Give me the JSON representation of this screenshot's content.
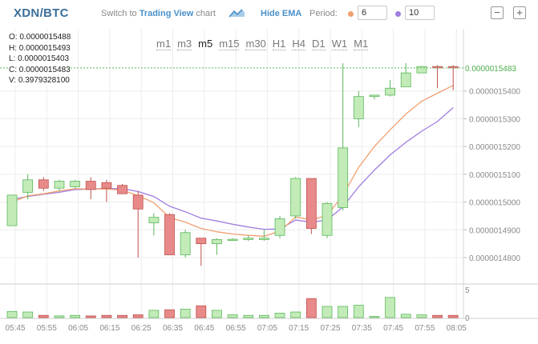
{
  "header": {
    "pair": "XDN/BTC",
    "switch_prefix": "Switch to",
    "switch_link": "Trading View",
    "switch_suffix": "chart",
    "hide_ema": "Hide EMA",
    "period_label": "Period:",
    "period1": "6",
    "period2": "10",
    "zoom_out": "−",
    "zoom_in": "+"
  },
  "ohlc": {
    "o": "O: 0.0000015488",
    "h": "H: 0.0000015493",
    "l": "L: 0.0000015403",
    "c": "C: 0.0000015483",
    "v": "V: 0.3979328100"
  },
  "timeframes": [
    "m1",
    "m3",
    "m5",
    "m15",
    "m30",
    "H1",
    "H4",
    "D1",
    "W1",
    "M1"
  ],
  "active_timeframe": "m5",
  "colors": {
    "up_fill": "#c2ebb8",
    "up_stroke": "#5cb85c",
    "down_fill": "#e88a8a",
    "down_stroke": "#c0504d",
    "ema_short": "#f0a070",
    "ema_long": "#a07de0",
    "last_price_line": "#5cb85c",
    "last_price_label": "#4cae4c",
    "grid": "#ececec"
  },
  "chart_data": {
    "type": "candlestick",
    "y_tick_labels": [
      "0.0000015400",
      "0.0000015300",
      "0.0000015200",
      "0.0000015100",
      "0.0000015000",
      "0.0000014900",
      "0.0000014800"
    ],
    "y_ticks": [
      1.54e-06,
      1.53e-06,
      1.52e-06,
      1.51e-06,
      1.5e-06,
      1.49e-06,
      1.48e-06
    ],
    "last_price_label": "0.0000015483",
    "last_price": 1.5483e-06,
    "x_tick_labels": [
      "05:45",
      "05:55",
      "06:05",
      "06:15",
      "06:25",
      "06:35",
      "06:45",
      "06:55",
      "07:05",
      "07:15",
      "07:25",
      "07:35",
      "07:45",
      "07:55",
      "08:05"
    ],
    "volume_ticks": [
      5,
      0
    ],
    "candles": [
      {
        "t": "05:45",
        "o": 1.4915e-06,
        "h": 1.5025e-06,
        "l": 1.4915e-06,
        "c": 1.5025e-06,
        "v": 1.1
      },
      {
        "t": "05:50",
        "o": 1.5035e-06,
        "h": 1.51e-06,
        "l": 1.501e-06,
        "c": 1.508e-06,
        "v": 1.0
      },
      {
        "t": "05:55",
        "o": 1.508e-06,
        "h": 1.509e-06,
        "l": 1.504e-06,
        "c": 1.505e-06,
        "v": 0.4
      },
      {
        "t": "06:00",
        "o": 1.505e-06,
        "h": 1.508e-06,
        "l": 1.504e-06,
        "c": 1.5075e-06,
        "v": 0.3
      },
      {
        "t": "06:05",
        "o": 1.5055e-06,
        "h": 1.508e-06,
        "l": 1.505e-06,
        "c": 1.5075e-06,
        "v": 0.4
      },
      {
        "t": "06:10",
        "o": 1.5075e-06,
        "h": 1.509e-06,
        "l": 1.501e-06,
        "c": 1.5045e-06,
        "v": 0.3
      },
      {
        "t": "06:15",
        "o": 1.507e-06,
        "h": 1.508e-06,
        "l": 1.5e-06,
        "c": 1.505e-06,
        "v": 0.4
      },
      {
        "t": "06:20",
        "o": 1.506e-06,
        "h": 1.5065e-06,
        "l": 1.503e-06,
        "c": 1.503e-06,
        "v": 0.4
      },
      {
        "t": "06:25",
        "o": 1.5025e-06,
        "h": 1.504e-06,
        "l": 1.48e-06,
        "c": 1.4975e-06,
        "v": 0.5
      },
      {
        "t": "06:30",
        "o": 1.4925e-06,
        "h": 1.496e-06,
        "l": 1.488e-06,
        "c": 1.4945e-06,
        "v": 1.3
      },
      {
        "t": "06:35",
        "o": 1.4955e-06,
        "h": 1.496e-06,
        "l": 1.481e-06,
        "c": 1.481e-06,
        "v": 1.4
      },
      {
        "t": "06:40",
        "o": 1.481e-06,
        "h": 1.49e-06,
        "l": 1.48e-06,
        "c": 1.489e-06,
        "v": 1.5
      },
      {
        "t": "06:45",
        "o": 1.487e-06,
        "h": 1.487e-06,
        "l": 1.477e-06,
        "c": 1.485e-06,
        "v": 2.1
      },
      {
        "t": "06:50",
        "o": 1.485e-06,
        "h": 1.487e-06,
        "l": 1.481e-06,
        "c": 1.4865e-06,
        "v": 1.3
      },
      {
        "t": "06:55",
        "o": 1.4862e-06,
        "h": 1.487e-06,
        "l": 1.486e-06,
        "c": 1.4866e-06,
        "v": 0.5
      },
      {
        "t": "07:00",
        "o": 1.4865e-06,
        "h": 1.488e-06,
        "l": 1.486e-06,
        "c": 1.487e-06,
        "v": 0.4
      },
      {
        "t": "07:05",
        "o": 1.4865e-06,
        "h": 1.49e-06,
        "l": 1.486e-06,
        "c": 1.487e-06,
        "v": 0.4
      },
      {
        "t": "07:10",
        "o": 1.488e-06,
        "h": 1.495e-06,
        "l": 1.487e-06,
        "c": 1.494e-06,
        "v": 0.8
      },
      {
        "t": "07:15",
        "o": 1.495e-06,
        "h": 1.509e-06,
        "l": 1.494e-06,
        "c": 1.5085e-06,
        "v": 1.0
      },
      {
        "t": "07:20",
        "o": 1.5085e-06,
        "h": 1.5085e-06,
        "l": 1.4885e-06,
        "c": 1.4905e-06,
        "v": 3.4
      },
      {
        "t": "07:25",
        "o": 1.488e-06,
        "h": 1.5e-06,
        "l": 1.487e-06,
        "c": 1.4995e-06,
        "v": 2.0
      },
      {
        "t": "07:30",
        "o": 1.498e-06,
        "h": 1.55e-06,
        "l": 1.497e-06,
        "c": 1.5195e-06,
        "v": 2.0
      },
      {
        "t": "07:35",
        "o": 1.53e-06,
        "h": 1.54e-06,
        "l": 1.527e-06,
        "c": 1.538e-06,
        "v": 2.2
      },
      {
        "t": "07:40",
        "o": 1.538e-06,
        "h": 1.5385e-06,
        "l": 1.537e-06,
        "c": 1.5385e-06,
        "v": 0.2
      },
      {
        "t": "07:45",
        "o": 1.5385e-06,
        "h": 1.544e-06,
        "l": 1.538e-06,
        "c": 1.541e-06,
        "v": 3.6
      },
      {
        "t": "07:50",
        "o": 1.5415e-06,
        "h": 1.55e-06,
        "l": 1.5415e-06,
        "c": 1.5465e-06,
        "v": 0.6
      },
      {
        "t": "07:55",
        "o": 1.5465e-06,
        "h": 1.549e-06,
        "l": 1.5465e-06,
        "c": 1.5488e-06,
        "v": 0.5
      },
      {
        "t": "08:00",
        "o": 1.5488e-06,
        "h": 1.5493e-06,
        "l": 1.541e-06,
        "c": 1.5483e-06,
        "v": 0.4
      },
      {
        "t": "08:05",
        "o": 1.5488e-06,
        "h": 1.5493e-06,
        "l": 1.5403e-06,
        "c": 1.5483e-06,
        "v": 0.4
      }
    ],
    "ema6": [
      1.5e-06,
      1.5022e-06,
      1.503e-06,
      1.504e-06,
      1.5048e-06,
      1.5047e-06,
      1.5047e-06,
      1.5043e-06,
      1.5023e-06,
      1.4998e-06,
      1.4944e-06,
      1.4928e-06,
      1.4905e-06,
      1.4893e-06,
      1.4885e-06,
      1.488e-06,
      1.4877e-06,
      1.4895e-06,
      1.4946e-06,
      1.4936e-06,
      1.4952e-06,
      1.5024e-06,
      1.5125e-06,
      1.52e-06,
      1.526e-06,
      1.5317e-06,
      1.5363e-06,
      1.5392e-06,
      1.542e-06
    ],
    "ema10": [
      1.501e-06,
      1.502e-06,
      1.5028e-06,
      1.5035e-06,
      1.5045e-06,
      1.5047e-06,
      1.5049e-06,
      1.5048e-06,
      1.5038e-06,
      1.502e-06,
      1.4985e-06,
      1.4965e-06,
      1.4942e-06,
      1.4932e-06,
      1.492e-06,
      1.491e-06,
      1.4902e-06,
      1.4903e-06,
      1.4935e-06,
      1.4928e-06,
      1.4935e-06,
      1.4982e-06,
      1.5055e-06,
      1.5115e-06,
      1.517e-06,
      1.5215e-06,
      1.5255e-06,
      1.529e-06,
      1.534e-06
    ]
  }
}
